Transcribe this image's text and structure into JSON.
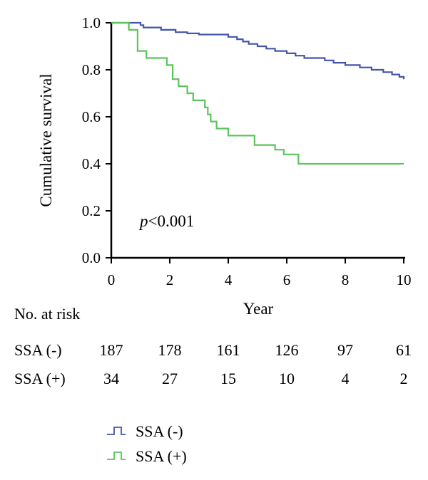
{
  "chart_data": {
    "type": "line",
    "subtype": "kaplan-meier-step",
    "title": "",
    "xlabel": "Year",
    "ylabel": "Cumulative survival",
    "xlim": [
      0,
      10
    ],
    "ylim": [
      0,
      1
    ],
    "x_ticks": [
      "0",
      "2",
      "4",
      "6",
      "8",
      "10"
    ],
    "y_ticks": [
      "0.0",
      "0.2",
      "0.4",
      "0.6",
      "0.8",
      "1.0"
    ],
    "grid": false,
    "legend_position": "bottom-center",
    "annotation": {
      "italic": "p",
      "rest": "<0.001"
    },
    "series": [
      {
        "name": "SSA (-)",
        "color": "#4455aa",
        "points": [
          [
            0,
            1.0
          ],
          [
            1.0,
            0.99
          ],
          [
            1.1,
            0.98
          ],
          [
            1.7,
            0.97
          ],
          [
            2.2,
            0.96
          ],
          [
            2.6,
            0.955
          ],
          [
            3.0,
            0.95
          ],
          [
            4.0,
            0.94
          ],
          [
            4.3,
            0.93
          ],
          [
            4.5,
            0.92
          ],
          [
            4.7,
            0.91
          ],
          [
            5.0,
            0.9
          ],
          [
            5.3,
            0.89
          ],
          [
            5.6,
            0.88
          ],
          [
            6.0,
            0.87
          ],
          [
            6.3,
            0.86
          ],
          [
            6.6,
            0.85
          ],
          [
            7.3,
            0.84
          ],
          [
            7.6,
            0.83
          ],
          [
            8.0,
            0.82
          ],
          [
            8.5,
            0.81
          ],
          [
            8.9,
            0.8
          ],
          [
            9.3,
            0.79
          ],
          [
            9.6,
            0.78
          ],
          [
            9.85,
            0.77
          ],
          [
            10.0,
            0.76
          ]
        ]
      },
      {
        "name": "SSA (+)",
        "color": "#5bc45b",
        "points": [
          [
            0,
            1.0
          ],
          [
            0.6,
            0.97
          ],
          [
            0.9,
            0.88
          ],
          [
            1.2,
            0.85
          ],
          [
            1.9,
            0.82
          ],
          [
            2.1,
            0.76
          ],
          [
            2.3,
            0.73
          ],
          [
            2.6,
            0.7
          ],
          [
            2.8,
            0.67
          ],
          [
            3.2,
            0.64
          ],
          [
            3.3,
            0.61
          ],
          [
            3.4,
            0.58
          ],
          [
            3.6,
            0.55
          ],
          [
            4.0,
            0.52
          ],
          [
            4.9,
            0.48
          ],
          [
            5.6,
            0.46
          ],
          [
            5.9,
            0.44
          ],
          [
            6.4,
            0.4
          ],
          [
            10.0,
            0.4
          ]
        ]
      }
    ]
  },
  "risk_table": {
    "title": "No. at risk",
    "rows": [
      {
        "label": "SSA (-)",
        "values": [
          "187",
          "178",
          "161",
          "126",
          "97",
          "61"
        ]
      },
      {
        "label": "SSA (+)",
        "values": [
          "34",
          "27",
          "15",
          "10",
          "4",
          "2"
        ]
      }
    ]
  }
}
